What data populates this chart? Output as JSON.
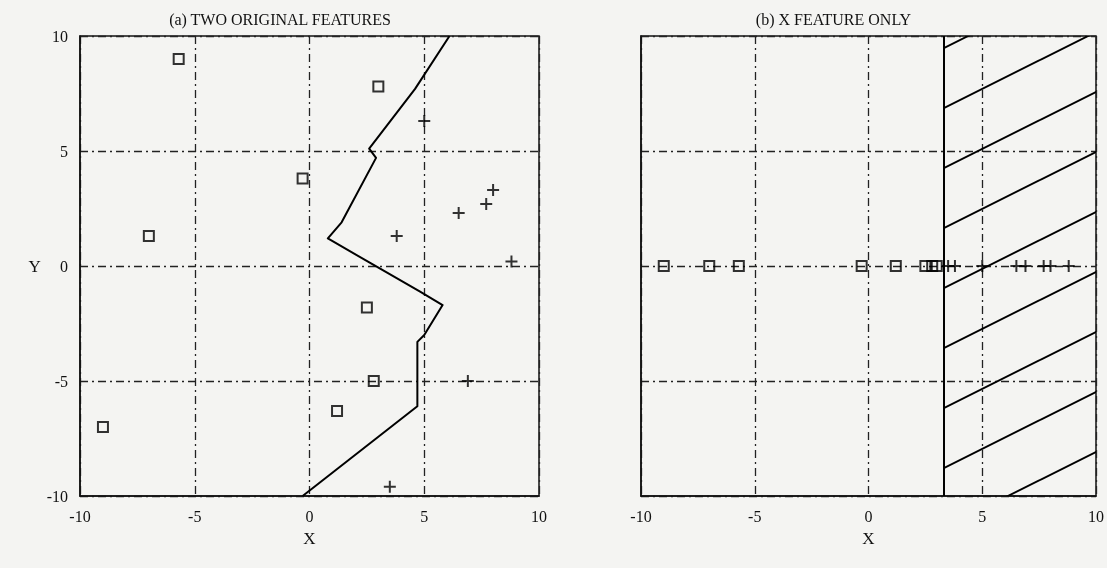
{
  "chart_data": [
    {
      "type": "scatter",
      "title": "(a) TWO ORIGINAL FEATURES",
      "xlabel": "X",
      "ylabel": "Y",
      "xlim": [
        -10,
        10
      ],
      "ylim": [
        -10,
        10
      ],
      "xticks": [
        -10,
        -5,
        0,
        5,
        10
      ],
      "yticks": [
        -10,
        -5,
        0,
        5,
        10
      ],
      "grid": true,
      "series": [
        {
          "color": "#000000",
          "marker": "square",
          "x": [
            -5.7,
            -0.3,
            -7.0,
            1.2,
            -9.0,
            3.0,
            2.5,
            2.8
          ],
          "values": [
            9.0,
            3.8,
            1.3,
            -6.3,
            -7.0,
            7.8,
            -1.8,
            -5.0
          ]
        },
        {
          "color": "#000000",
          "marker": "cross",
          "x": [
            3.8,
            6.5,
            7.7,
            8.0,
            8.8,
            6.9,
            3.5,
            5.0
          ],
          "values": [
            1.3,
            2.3,
            2.7,
            3.3,
            0.2,
            -5.0,
            -9.6,
            6.3
          ]
        },
        {
          "type": "line",
          "color": "#000000",
          "marker": "none",
          "x": [
            6.1,
            4.6,
            2.6,
            2.9,
            1.4,
            0.8,
            2.7,
            4.8,
            5.8,
            5.0,
            4.7,
            4.7,
            -0.3
          ],
          "values": [
            10,
            7.7,
            5.1,
            4.7,
            1.9,
            1.2,
            0.1,
            -1.1,
            -1.7,
            -3.0,
            -3.3,
            -6.1,
            -10
          ]
        }
      ]
    },
    {
      "type": "scatter",
      "title": "(b) X FEATURE ONLY",
      "xlabel": "X",
      "xlim": [
        -10,
        10
      ],
      "ylim": [
        -10,
        10
      ],
      "xticks": [
        -10,
        -5,
        0,
        5,
        10
      ],
      "yticks": [
        -10,
        -5,
        0,
        5,
        10
      ],
      "tick_labels": "x",
      "grid": true,
      "ref_lines": [
        {
          "axis": "x",
          "value": 3.3,
          "color": "#000000"
        }
      ],
      "bands": [
        {
          "axis": "x",
          "from": 3.3,
          "to": 10
        }
      ],
      "series": [
        {
          "color": "#000000",
          "marker": "square",
          "x": [
            -9.0,
            -7.0,
            -5.7,
            -0.3,
            1.2,
            2.5,
            2.8,
            3.0
          ],
          "values": [
            0,
            0,
            0,
            0,
            0,
            0,
            0,
            0
          ]
        },
        {
          "color": "#000000",
          "marker": "cross",
          "x": [
            3.5,
            3.8,
            5.0,
            6.5,
            6.9,
            7.7,
            8.0,
            8.8
          ],
          "values": [
            0,
            0,
            0,
            0,
            0,
            0,
            0,
            0
          ]
        }
      ]
    }
  ]
}
